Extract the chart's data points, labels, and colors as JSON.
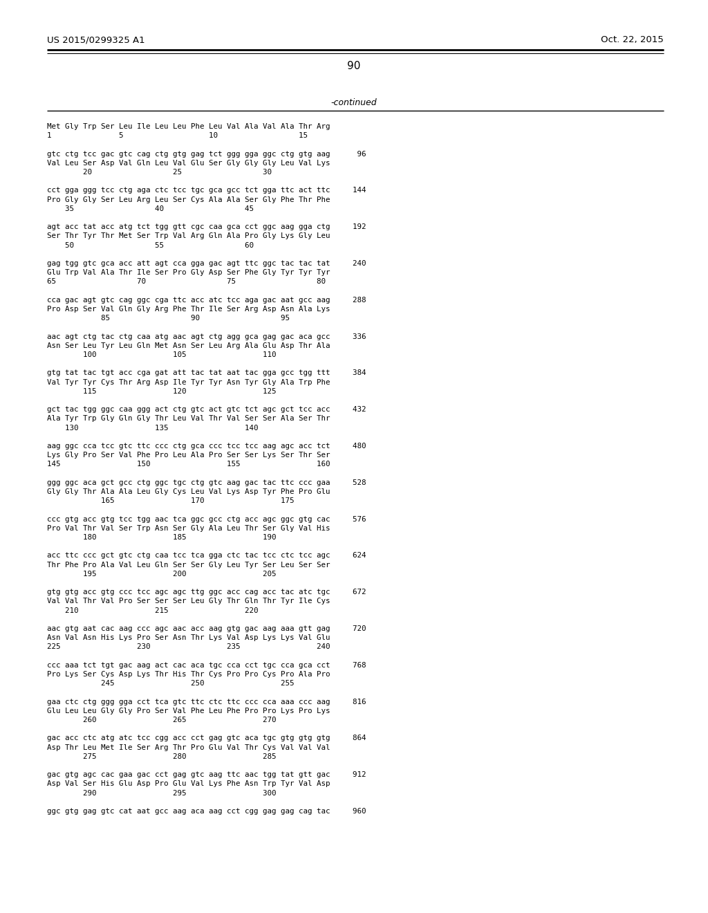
{
  "header_left": "US 2015/0299325 A1",
  "header_right": "Oct. 22, 2015",
  "page_number": "90",
  "continued_label": "-continued",
  "background_color": "#ffffff",
  "text_color": "#000000",
  "lines": [
    "Met Gly Trp Ser Leu Ile Leu Leu Phe Leu Val Ala Val Ala Thr Arg",
    "1               5                   10                  15",
    "",
    "gtc ctg tcc gac gtc cag ctg gtg gag tct ggg gga ggc ctg gtg aag      96",
    "Val Leu Ser Asp Val Gln Leu Val Glu Ser Gly Gly Gly Leu Val Lys",
    "        20                  25                  30",
    "",
    "cct gga ggg tcc ctg aga ctc tcc tgc gca gcc tct gga ttc act ttc     144",
    "Pro Gly Gly Ser Leu Arg Leu Ser Cys Ala Ala Ser Gly Phe Thr Phe",
    "    35                  40                  45",
    "",
    "agt acc tat acc atg tct tgg gtt cgc caa gca cct ggc aag gga ctg     192",
    "Ser Thr Tyr Thr Met Ser Trp Val Arg Gln Ala Pro Gly Lys Gly Leu",
    "    50                  55                  60",
    "",
    "gag tgg gtc gca acc att agt cca gga gac agt ttc ggc tac tac tat     240",
    "Glu Trp Val Ala Thr Ile Ser Pro Gly Asp Ser Phe Gly Tyr Tyr Tyr",
    "65                  70                  75                  80",
    "",
    "cca gac agt gtc cag ggc cga ttc acc atc tcc aga gac aat gcc aag     288",
    "Pro Asp Ser Val Gln Gly Arg Phe Thr Ile Ser Arg Asp Asn Ala Lys",
    "            85                  90                  95",
    "",
    "aac agt ctg tac ctg caa atg aac agt ctg agg gca gag gac aca gcc     336",
    "Asn Ser Leu Tyr Leu Gln Met Asn Ser Leu Arg Ala Glu Asp Thr Ala",
    "        100                 105                 110",
    "",
    "gtg tat tac tgt acc cga gat att tac tat aat tac gga gcc tgg ttt     384",
    "Val Tyr Tyr Cys Thr Arg Asp Ile Tyr Tyr Asn Tyr Gly Ala Trp Phe",
    "        115                 120                 125",
    "",
    "gct tac tgg ggc caa ggg act ctg gtc act gtc tct agc gct tcc acc     432",
    "Ala Tyr Trp Gly Gln Gly Thr Leu Val Thr Val Ser Ser Ala Ser Thr",
    "    130                 135                 140",
    "",
    "aag ggc cca tcc gtc ttc ccc ctg gca ccc tcc tcc aag agc acc tct     480",
    "Lys Gly Pro Ser Val Phe Pro Leu Ala Pro Ser Ser Lys Ser Thr Ser",
    "145                 150                 155                 160",
    "",
    "ggg ggc aca gct gcc ctg ggc tgc ctg gtc aag gac tac ttc ccc gaa     528",
    "Gly Gly Thr Ala Ala Leu Gly Cys Leu Val Lys Asp Tyr Phe Pro Glu",
    "            165                 170                 175",
    "",
    "ccc gtg acc gtg tcc tgg aac tca ggc gcc ctg acc agc ggc gtg cac     576",
    "Pro Val Thr Val Ser Trp Asn Ser Gly Ala Leu Thr Ser Gly Val His",
    "        180                 185                 190",
    "",
    "acc ttc ccc gct gtc ctg caa tcc tca gga ctc tac tcc ctc tcc agc     624",
    "Thr Phe Pro Ala Val Leu Gln Ser Ser Gly Leu Tyr Ser Leu Ser Ser",
    "        195                 200                 205",
    "",
    "gtg gtg acc gtg ccc tcc agc agc ttg ggc acc cag acc tac atc tgc     672",
    "Val Val Thr Val Pro Ser Ser Ser Leu Gly Thr Gln Thr Tyr Ile Cys",
    "    210                 215                 220",
    "",
    "aac gtg aat cac aag ccc agc aac acc aag gtg gac aag aaa gtt gag     720",
    "Asn Val Asn His Lys Pro Ser Asn Thr Lys Val Asp Lys Lys Val Glu",
    "225                 230                 235                 240",
    "",
    "ccc aaa tct tgt gac aag act cac aca tgc cca cct tgc cca gca cct     768",
    "Pro Lys Ser Cys Asp Lys Thr His Thr Cys Pro Pro Cys Pro Ala Pro",
    "            245                 250                 255",
    "",
    "gaa ctc ctg ggg gga cct tca gtc ttc ctc ttc ccc cca aaa ccc aag     816",
    "Glu Leu Leu Gly Gly Pro Ser Val Phe Leu Phe Pro Pro Lys Pro Lys",
    "        260                 265                 270",
    "",
    "gac acc ctc atg atc tcc cgg acc cct gag gtc aca tgc gtg gtg gtg     864",
    "Asp Thr Leu Met Ile Ser Arg Thr Pro Glu Val Thr Cys Val Val Val",
    "        275                 280                 285",
    "",
    "gac gtg agc cac gaa gac cct gag gtc aag ttc aac tgg tat gtt gac     912",
    "Asp Val Ser His Glu Asp Pro Glu Val Lys Phe Asn Trp Tyr Val Asp",
    "        290                 295                 300",
    "",
    "ggc gtg gag gtc cat aat gcc aag aca aag cct cgg gag gag cag tac     960"
  ]
}
